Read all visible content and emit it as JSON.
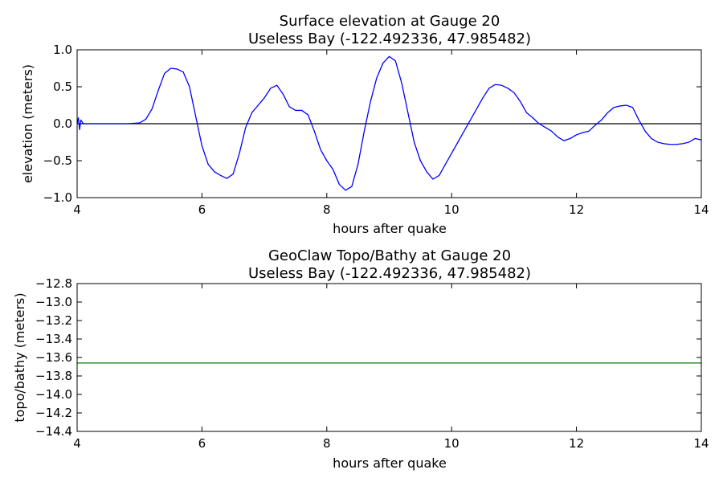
{
  "chart_data": [
    {
      "type": "line",
      "title": "Surface elevation at Gauge 20",
      "subtitle": "Useless Bay  (-122.492336, 47.985482)",
      "xlabel": "hours after quake",
      "ylabel": "elevation (meters)",
      "xlim": [
        4,
        14
      ],
      "ylim": [
        -1.0,
        1.0
      ],
      "xticks": [
        "4",
        "6",
        "8",
        "10",
        "12",
        "14"
      ],
      "yticks": [
        "−1.0",
        "−0.5",
        "0.0",
        "0.5",
        "1.0"
      ],
      "reference_line": 0.0,
      "grid": false,
      "colors": {
        "series": "#0000ff",
        "reference": "#000000"
      },
      "series": [
        {
          "x": [
            4.0,
            4.02,
            4.04,
            4.06,
            4.1,
            4.2,
            4.5,
            4.8,
            5.0,
            5.1,
            5.2,
            5.3,
            5.4,
            5.5,
            5.6,
            5.7,
            5.8,
            5.9,
            6.0,
            6.1,
            6.2,
            6.3,
            6.4,
            6.5,
            6.6,
            6.7,
            6.8,
            6.9,
            7.0,
            7.1,
            7.2,
            7.3,
            7.4,
            7.5,
            7.6,
            7.7,
            7.8,
            7.9,
            8.0,
            8.1,
            8.2,
            8.3,
            8.4,
            8.5,
            8.6,
            8.7,
            8.8,
            8.9,
            9.0,
            9.1,
            9.2,
            9.3,
            9.4,
            9.5,
            9.6,
            9.7,
            9.8,
            9.9,
            10.0,
            10.1,
            10.2,
            10.3,
            10.4,
            10.5,
            10.6,
            10.7,
            10.8,
            10.9,
            11.0,
            11.1,
            11.2,
            11.3,
            11.4,
            11.5,
            11.6,
            11.7,
            11.8,
            11.9,
            12.0,
            12.1,
            12.2,
            12.3,
            12.4,
            12.5,
            12.6,
            12.7,
            12.8,
            12.9,
            13.0,
            13.1,
            13.2,
            13.3,
            13.4,
            13.5,
            13.6,
            13.7,
            13.8,
            13.9,
            14.0
          ],
          "y": [
            0.0,
            0.08,
            -0.08,
            0.05,
            0.0,
            0.0,
            0.0,
            0.0,
            0.01,
            0.06,
            0.2,
            0.45,
            0.68,
            0.75,
            0.74,
            0.7,
            0.5,
            0.1,
            -0.3,
            -0.55,
            -0.65,
            -0.7,
            -0.74,
            -0.68,
            -0.4,
            -0.05,
            0.15,
            0.25,
            0.35,
            0.48,
            0.52,
            0.4,
            0.23,
            0.18,
            0.18,
            0.12,
            -0.1,
            -0.35,
            -0.5,
            -0.62,
            -0.82,
            -0.9,
            -0.85,
            -0.55,
            -0.1,
            0.3,
            0.62,
            0.82,
            0.91,
            0.85,
            0.55,
            0.15,
            -0.25,
            -0.5,
            -0.65,
            -0.75,
            -0.7,
            -0.55,
            -0.4,
            -0.25,
            -0.1,
            0.05,
            0.2,
            0.35,
            0.48,
            0.53,
            0.52,
            0.48,
            0.42,
            0.3,
            0.15,
            0.08,
            0.0,
            -0.05,
            -0.1,
            -0.18,
            -0.23,
            -0.2,
            -0.15,
            -0.12,
            -0.1,
            -0.02,
            0.05,
            0.15,
            0.22,
            0.24,
            0.25,
            0.22,
            0.05,
            -0.1,
            -0.2,
            -0.25,
            -0.27,
            -0.28,
            -0.28,
            -0.27,
            -0.25,
            -0.2,
            -0.22
          ]
        }
      ]
    },
    {
      "type": "line",
      "title": "GeoClaw Topo/Bathy at Gauge 20",
      "subtitle": "Useless Bay  (-122.492336, 47.985482)",
      "xlabel": "hours after quake",
      "ylabel": "topo/bathy (meters)",
      "xlim": [
        4,
        14
      ],
      "ylim": [
        -14.4,
        -12.8
      ],
      "xticks": [
        "4",
        "6",
        "8",
        "10",
        "12",
        "14"
      ],
      "yticks": [
        "−12.8",
        "−13.0",
        "−13.2",
        "−13.4",
        "−13.6",
        "−13.8",
        "−14.0",
        "−14.2",
        "−14.4"
      ],
      "grid": false,
      "colors": {
        "series": "#008000"
      },
      "series": [
        {
          "x": [
            4,
            14
          ],
          "y": [
            -13.66,
            -13.66
          ]
        }
      ]
    }
  ]
}
